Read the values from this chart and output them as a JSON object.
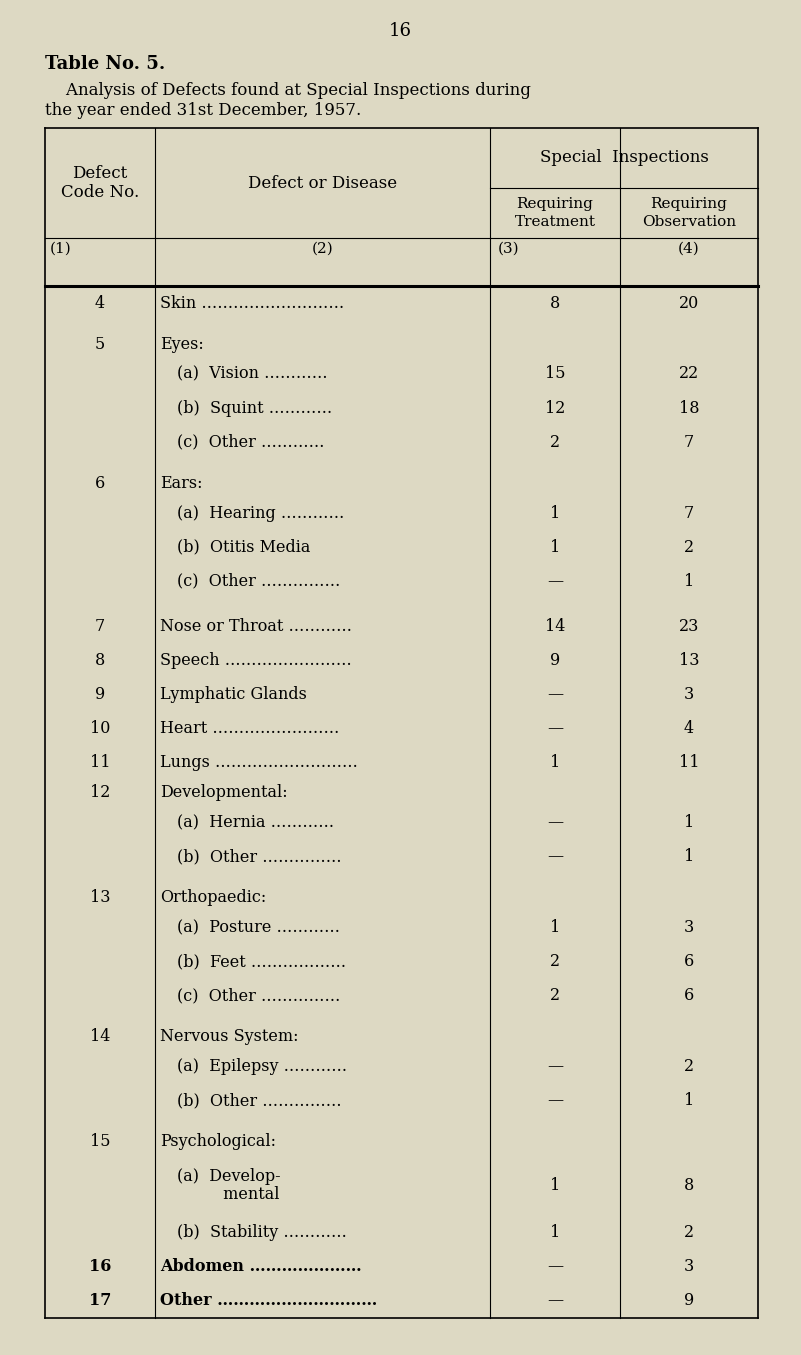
{
  "page_number": "16",
  "table_title_bold": "Table No. 5.",
  "table_subtitle_line1": "    Analysis of Defects found at Special Inspections during",
  "table_subtitle_line2": "the year ended 31st December, 1957.",
  "bg_color": "#ddd9c3",
  "col_header_1": "Defect\nCode No.",
  "col_header_2": "Defect or Disease",
  "col_header_3": "Special  Inspections",
  "col_header_3a": "Requiring\nTreatment",
  "col_header_3b": "Requiring\nObservation",
  "col_labels": [
    "(1)",
    "(2)",
    "(3)",
    "(4)"
  ],
  "rows": [
    {
      "code": "4",
      "disease": "Skin ………………………",
      "treat": "8",
      "obs": "20",
      "gap_before": false
    },
    {
      "code": "5",
      "disease": "Eyes:",
      "treat": "",
      "obs": "",
      "gap_before": true
    },
    {
      "code": "",
      "disease": "(a)  Vision …………",
      "treat": "15",
      "obs": "22",
      "gap_before": false
    },
    {
      "code": "",
      "disease": "(b)  Squint …………",
      "treat": "12",
      "obs": "18",
      "gap_before": false
    },
    {
      "code": "",
      "disease": "(c)  Other …………",
      "treat": "2",
      "obs": "7",
      "gap_before": false
    },
    {
      "code": "6",
      "disease": "Ears:",
      "treat": "",
      "obs": "",
      "gap_before": true
    },
    {
      "code": "",
      "disease": "(a)  Hearing …………",
      "treat": "1",
      "obs": "7",
      "gap_before": false
    },
    {
      "code": "",
      "disease": "(b)  Otitis Media",
      "treat": "1",
      "obs": "2",
      "gap_before": false
    },
    {
      "code": "",
      "disease": "(c)  Other ……………",
      "treat": "—",
      "obs": "1",
      "gap_before": false
    },
    {
      "code": "7",
      "disease": "Nose or Throat …………",
      "treat": "14",
      "obs": "23",
      "gap_before": true
    },
    {
      "code": "8",
      "disease": "Speech ……………………",
      "treat": "9",
      "obs": "13",
      "gap_before": false
    },
    {
      "code": "9",
      "disease": "Lymphatic Glands",
      "treat": "—",
      "obs": "3",
      "gap_before": false
    },
    {
      "code": "10",
      "disease": "Heart ……………………",
      "treat": "—",
      "obs": "4",
      "gap_before": false
    },
    {
      "code": "11",
      "disease": "Lungs ………………………",
      "treat": "1",
      "obs": "11",
      "gap_before": false
    },
    {
      "code": "12",
      "disease": "Developmental:",
      "treat": "",
      "obs": "",
      "gap_before": false
    },
    {
      "code": "",
      "disease": "(a)  Hernia …………",
      "treat": "—",
      "obs": "1",
      "gap_before": false
    },
    {
      "code": "",
      "disease": "(b)  Other ……………",
      "treat": "—",
      "obs": "1",
      "gap_before": false
    },
    {
      "code": "13",
      "disease": "Orthopaedic:",
      "treat": "",
      "obs": "",
      "gap_before": true
    },
    {
      "code": "",
      "disease": "(a)  Posture …………",
      "treat": "1",
      "obs": "3",
      "gap_before": false
    },
    {
      "code": "",
      "disease": "(b)  Feet ………………",
      "treat": "2",
      "obs": "6",
      "gap_before": false
    },
    {
      "code": "",
      "disease": "(c)  Other ……………",
      "treat": "2",
      "obs": "6",
      "gap_before": false
    },
    {
      "code": "14",
      "disease": "Nervous System:",
      "treat": "",
      "obs": "",
      "gap_before": true
    },
    {
      "code": "",
      "disease": "(a)  Epilepsy …………",
      "treat": "—",
      "obs": "2",
      "gap_before": false
    },
    {
      "code": "",
      "disease": "(b)  Other ……………",
      "treat": "—",
      "obs": "1",
      "gap_before": false
    },
    {
      "code": "15",
      "disease": "Psychological:",
      "treat": "",
      "obs": "",
      "gap_before": true
    },
    {
      "code": "",
      "disease": "(a)  Develop-\n         mental",
      "treat": "1",
      "obs": "8",
      "gap_before": false
    },
    {
      "code": "",
      "disease": "(b)  Stability …………",
      "treat": "1",
      "obs": "2",
      "gap_before": false
    },
    {
      "code": "16",
      "disease": "Abdomen …………………",
      "treat": "—",
      "obs": "3",
      "gap_before": false
    },
    {
      "code": "17",
      "disease": "Other …………………………",
      "treat": "—",
      "obs": "9",
      "gap_before": false
    }
  ]
}
